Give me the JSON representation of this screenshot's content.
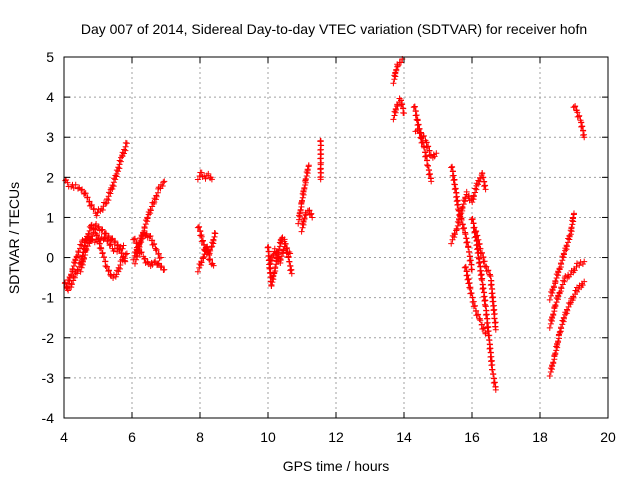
{
  "chart_data": {
    "type": "scatter",
    "title": "Day 007 of 2014, Sidereal Day-to-day VTEC variation (SDTVAR) for receiver hofn",
    "xlabel": "GPS time / hours",
    "ylabel": "SDTVAR / TECUs",
    "xlim": [
      4,
      20
    ],
    "ylim": [
      -4,
      5
    ],
    "xticks": [
      "4",
      "6",
      "8",
      "10",
      "12",
      "14",
      "16",
      "18",
      "20"
    ],
    "yticks": [
      "-4",
      "-3",
      "-2",
      "-1",
      "0",
      "1",
      "2",
      "3",
      "4",
      "5"
    ],
    "grid": true,
    "marker": "+",
    "series_color": "#ff0000",
    "segments": [
      [
        [
          4.0,
          1.95
        ],
        [
          4.1,
          1.85
        ],
        [
          4.2,
          1.8
        ],
        [
          4.35,
          1.78
        ],
        [
          4.5,
          1.7
        ],
        [
          4.65,
          1.55
        ],
        [
          4.8,
          1.3
        ],
        [
          4.95,
          1.1
        ],
        [
          5.1,
          1.2
        ],
        [
          5.25,
          1.4
        ],
        [
          5.4,
          1.7
        ],
        [
          5.55,
          2.1
        ],
        [
          5.7,
          2.5
        ],
        [
          5.85,
          2.85
        ]
      ],
      [
        [
          4.0,
          -0.6
        ],
        [
          4.1,
          -0.8
        ],
        [
          4.2,
          -0.7
        ],
        [
          4.35,
          -0.4
        ],
        [
          4.5,
          -0.1
        ],
        [
          4.65,
          0.4
        ],
        [
          4.8,
          0.8
        ],
        [
          4.95,
          0.6
        ],
        [
          5.1,
          0.2
        ],
        [
          5.25,
          -0.2
        ],
        [
          5.4,
          -0.5
        ],
        [
          5.55,
          -0.4
        ],
        [
          5.7,
          -0.1
        ],
        [
          5.85,
          0.1
        ]
      ],
      [
        [
          4.1,
          -0.7
        ],
        [
          4.25,
          -0.3
        ],
        [
          4.4,
          0.1
        ],
        [
          4.55,
          0.4
        ],
        [
          4.7,
          0.5
        ],
        [
          4.85,
          0.4
        ],
        [
          5.0,
          0.4
        ],
        [
          5.15,
          0.5
        ],
        [
          5.3,
          0.4
        ],
        [
          5.45,
          0.2
        ],
        [
          5.6,
          0.2
        ],
        [
          5.75,
          0.3
        ]
      ],
      [
        [
          4.5,
          -0.3
        ],
        [
          4.65,
          0.2
        ],
        [
          4.8,
          0.5
        ],
        [
          4.95,
          0.8
        ],
        [
          5.1,
          0.7
        ],
        [
          5.25,
          0.55
        ],
        [
          5.4,
          0.45
        ],
        [
          5.55,
          0.35
        ],
        [
          5.7,
          0.1
        ],
        [
          5.8,
          -0.1
        ]
      ],
      [
        [
          6.05,
          0.0
        ],
        [
          6.2,
          0.3
        ],
        [
          6.35,
          0.7
        ],
        [
          6.5,
          1.1
        ],
        [
          6.65,
          1.4
        ],
        [
          6.8,
          1.7
        ],
        [
          6.95,
          1.9
        ]
      ],
      [
        [
          6.05,
          0.5
        ],
        [
          6.2,
          0.2
        ],
        [
          6.35,
          0.0
        ],
        [
          6.5,
          -0.2
        ],
        [
          6.65,
          -0.1
        ],
        [
          6.8,
          -0.2
        ],
        [
          6.95,
          -0.3
        ]
      ],
      [
        [
          6.1,
          -0.1
        ],
        [
          6.25,
          0.4
        ],
        [
          6.4,
          0.6
        ],
        [
          6.55,
          0.5
        ],
        [
          6.7,
          0.2
        ],
        [
          6.85,
          0.0
        ]
      ],
      [
        [
          7.95,
          2.0
        ],
        [
          8.05,
          2.1
        ],
        [
          8.15,
          2.0
        ],
        [
          8.25,
          2.05
        ],
        [
          8.35,
          1.95
        ]
      ],
      [
        [
          7.95,
          0.8
        ],
        [
          8.05,
          0.5
        ],
        [
          8.15,
          0.2
        ],
        [
          8.25,
          0.1
        ],
        [
          8.35,
          0.3
        ],
        [
          8.45,
          0.6
        ]
      ],
      [
        [
          7.95,
          -0.3
        ],
        [
          8.1,
          0.0
        ],
        [
          8.2,
          0.3
        ],
        [
          8.3,
          -0.1
        ],
        [
          8.4,
          -0.2
        ]
      ],
      [
        [
          10.0,
          0.3
        ],
        [
          10.1,
          -0.7
        ],
        [
          10.2,
          -0.3
        ],
        [
          10.3,
          0.1
        ],
        [
          10.4,
          0.5
        ],
        [
          10.5,
          0.4
        ],
        [
          10.6,
          0.0
        ],
        [
          10.7,
          -0.4
        ]
      ],
      [
        [
          10.05,
          -0.2
        ],
        [
          10.2,
          0.2
        ],
        [
          10.35,
          -0.1
        ],
        [
          10.5,
          0.3
        ],
        [
          10.65,
          0.1
        ]
      ],
      [
        [
          10.9,
          0.9
        ],
        [
          11.0,
          1.4
        ],
        [
          11.1,
          1.9
        ],
        [
          11.2,
          2.3
        ]
      ],
      [
        [
          11.0,
          0.7
        ],
        [
          11.1,
          1.1
        ],
        [
          11.2,
          1.2
        ],
        [
          11.3,
          1.0
        ]
      ],
      [
        [
          11.55,
          2.95
        ],
        [
          11.55,
          2.3
        ],
        [
          11.55,
          1.95
        ]
      ],
      [
        [
          13.7,
          4.4
        ],
        [
          13.8,
          4.8
        ],
        [
          13.9,
          4.9
        ],
        [
          13.95,
          4.95
        ]
      ],
      [
        [
          13.7,
          3.5
        ],
        [
          13.8,
          3.8
        ],
        [
          13.9,
          3.95
        ],
        [
          14.0,
          3.6
        ]
      ],
      [
        [
          14.3,
          3.8
        ],
        [
          14.4,
          3.4
        ],
        [
          14.5,
          3.0
        ],
        [
          14.6,
          2.7
        ],
        [
          14.7,
          2.3
        ],
        [
          14.8,
          1.9
        ]
      ],
      [
        [
          14.35,
          3.2
        ],
        [
          14.5,
          3.1
        ],
        [
          14.65,
          2.9
        ],
        [
          14.8,
          2.5
        ],
        [
          14.95,
          2.6
        ]
      ],
      [
        [
          15.4,
          2.3
        ],
        [
          15.5,
          1.8
        ],
        [
          15.6,
          1.2
        ],
        [
          15.7,
          0.9
        ],
        [
          15.8,
          0.6
        ],
        [
          15.9,
          0.2
        ],
        [
          16.0,
          -0.3
        ]
      ],
      [
        [
          15.4,
          0.4
        ],
        [
          15.55,
          0.7
        ],
        [
          15.7,
          1.2
        ],
        [
          15.85,
          1.6
        ],
        [
          16.0,
          1.4
        ],
        [
          16.15,
          1.8
        ],
        [
          16.3,
          2.1
        ],
        [
          16.4,
          1.7
        ]
      ],
      [
        [
          15.8,
          -0.2
        ],
        [
          15.95,
          -0.8
        ],
        [
          16.1,
          -1.3
        ],
        [
          16.25,
          -1.6
        ],
        [
          16.4,
          -1.9
        ]
      ],
      [
        [
          16.0,
          1.0
        ],
        [
          16.1,
          0.6
        ],
        [
          16.2,
          0.0
        ],
        [
          16.3,
          -0.6
        ],
        [
          16.4,
          -1.2
        ],
        [
          16.5,
          -2.0
        ],
        [
          16.6,
          -2.8
        ],
        [
          16.7,
          -3.3
        ]
      ],
      [
        [
          16.1,
          0.7
        ],
        [
          16.25,
          0.2
        ],
        [
          16.4,
          -0.2
        ],
        [
          16.55,
          -0.5
        ],
        [
          16.7,
          -1.8
        ]
      ],
      [
        [
          18.3,
          -1.0
        ],
        [
          18.45,
          -0.6
        ],
        [
          18.6,
          -0.2
        ],
        [
          18.75,
          0.2
        ],
        [
          18.9,
          0.6
        ],
        [
          19.0,
          1.1
        ]
      ],
      [
        [
          18.3,
          -1.7
        ],
        [
          18.45,
          -1.2
        ],
        [
          18.6,
          -0.8
        ],
        [
          18.75,
          -0.5
        ],
        [
          18.9,
          -0.4
        ],
        [
          19.1,
          -0.2
        ],
        [
          19.3,
          -0.1
        ]
      ],
      [
        [
          18.3,
          -2.9
        ],
        [
          18.45,
          -2.4
        ],
        [
          18.6,
          -1.8
        ],
        [
          18.75,
          -1.4
        ],
        [
          18.9,
          -1.1
        ],
        [
          19.1,
          -0.8
        ],
        [
          19.3,
          -0.6
        ]
      ],
      [
        [
          19.0,
          3.8
        ],
        [
          19.1,
          3.6
        ],
        [
          19.2,
          3.4
        ],
        [
          19.3,
          3.0
        ]
      ]
    ]
  }
}
